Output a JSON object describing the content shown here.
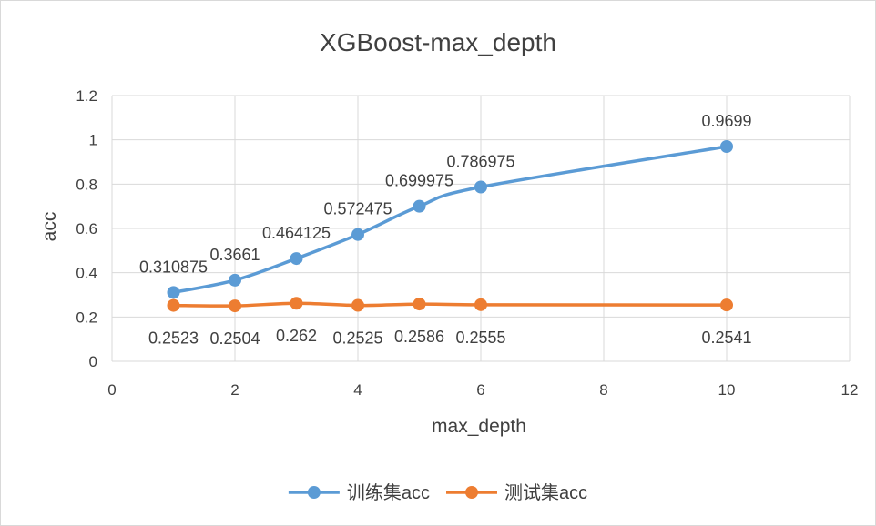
{
  "chart_data": {
    "type": "line",
    "title": "XGBoost-max_depth",
    "xlabel": "max_depth",
    "ylabel": "acc",
    "xlim": [
      0,
      12
    ],
    "ylim": [
      0,
      1.2
    ],
    "x_ticks": [
      "0",
      "2",
      "4",
      "6",
      "8",
      "10",
      "12"
    ],
    "y_ticks": [
      "0",
      "0.2",
      "0.4",
      "0.6",
      "0.8",
      "1",
      "1.2"
    ],
    "grid": true,
    "legend_position": "bottom",
    "smooth": true,
    "series": [
      {
        "name": "训练集acc",
        "color": "#5b9bd5",
        "x": [
          1,
          2,
          3,
          4,
          5,
          6,
          10
        ],
        "values": [
          0.310875,
          0.3661,
          0.464125,
          0.572475,
          0.699975,
          0.786975,
          0.9699
        ],
        "labels": [
          "0.310875",
          "0.3661",
          "0.464125",
          "0.572475",
          "0.699975",
          "0.786975",
          "0.9699"
        ],
        "label_position": "above"
      },
      {
        "name": "测试集acc",
        "color": "#ed7d31",
        "x": [
          1,
          2,
          3,
          4,
          5,
          6,
          10
        ],
        "values": [
          0.2523,
          0.2504,
          0.262,
          0.2525,
          0.2586,
          0.2555,
          0.2541
        ],
        "labels": [
          "0.2523",
          "0.2504",
          "0.262",
          "0.2525",
          "0.2586",
          "0.2555",
          "0.2541"
        ],
        "label_position": "below"
      }
    ]
  }
}
